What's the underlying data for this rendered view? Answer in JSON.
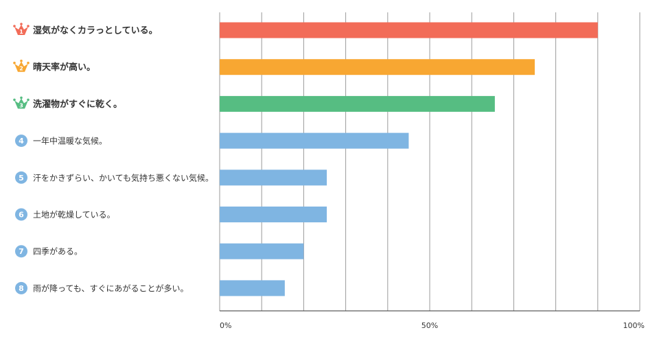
{
  "chart_data": {
    "type": "bar",
    "orientation": "horizontal",
    "title": "",
    "xlabel": "",
    "ylabel": "",
    "xlim": [
      0,
      100
    ],
    "x_ticks": [
      "0%",
      "50%",
      "100%"
    ],
    "grid": true,
    "categories": [
      "湿気がなくカラっとしている。",
      "晴天率が高い。",
      "洗濯物がすぐに乾く。",
      "一年中温暖な気候。",
      "汗をかきずらい、かいても気持ち悪くない気候。",
      "土地が乾燥している。",
      "四季がある。",
      "雨が降っても、すぐにあがることが多い。"
    ],
    "ranks": [
      "1",
      "2",
      "3",
      "4",
      "5",
      "6",
      "7",
      "8"
    ],
    "values": [
      90,
      75,
      65.5,
      45,
      25.5,
      25.5,
      20,
      15.5
    ],
    "colors": [
      "#f26c58",
      "#f8a732",
      "#56bd82",
      "#7fb5e2",
      "#7fb5e2",
      "#7fb5e2",
      "#7fb5e2",
      "#7fb5e2"
    ],
    "grid_color": "#9a9a9a",
    "axis_color": "#333333"
  }
}
